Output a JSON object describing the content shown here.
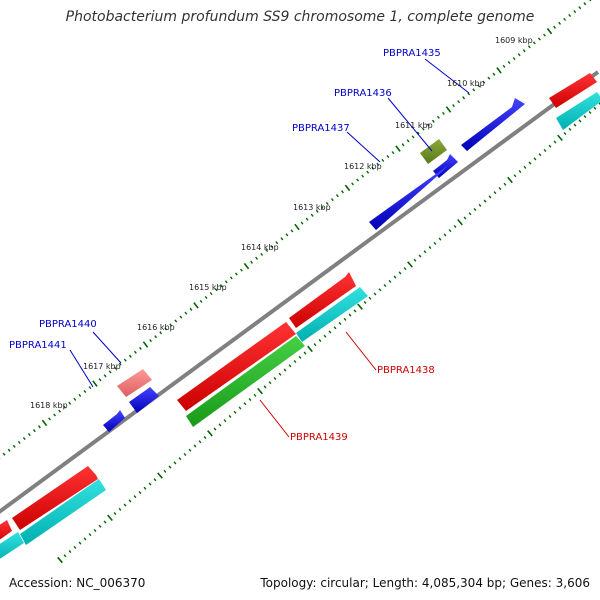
{
  "title": "Photobacterium profundum SS9 chromosome 1, complete genome",
  "footer": {
    "accession": "Accession: NC_006370",
    "summary": "Topology: circular; Length: 4,085,304 bp; Genes: 3,606"
  },
  "colors": {
    "backbone": "#808080",
    "tick": "#006400",
    "forward_gene_label": "#0000cc",
    "reverse_gene_label": "#cc0000",
    "blue_feature": "#0000dd",
    "red_feature": "#ee0000",
    "cyan_feature": "#00cccc",
    "green_feature": "#22bb22",
    "olive_feature": "#668822",
    "pink_feature": "#ee7777"
  },
  "position_labels": [
    "1609 kbp",
    "1610 kbp",
    "1611 kbp",
    "1612 kbp",
    "1613 kbp",
    "1614 kbp",
    "1615 kbp",
    "1616 kbp",
    "1617 kbp",
    "1618 kbp"
  ],
  "gene_labels": [
    {
      "text": "PBPRA1435",
      "strand": "forward"
    },
    {
      "text": "PBPRA1436",
      "strand": "forward"
    },
    {
      "text": "PBPRA1437",
      "strand": "forward"
    },
    {
      "text": "PBPRA1438",
      "strand": "reverse"
    },
    {
      "text": "PBPRA1439",
      "strand": "reverse"
    },
    {
      "text": "PBPRA1440",
      "strand": "forward"
    },
    {
      "text": "PBPRA1441",
      "strand": "forward"
    }
  ]
}
